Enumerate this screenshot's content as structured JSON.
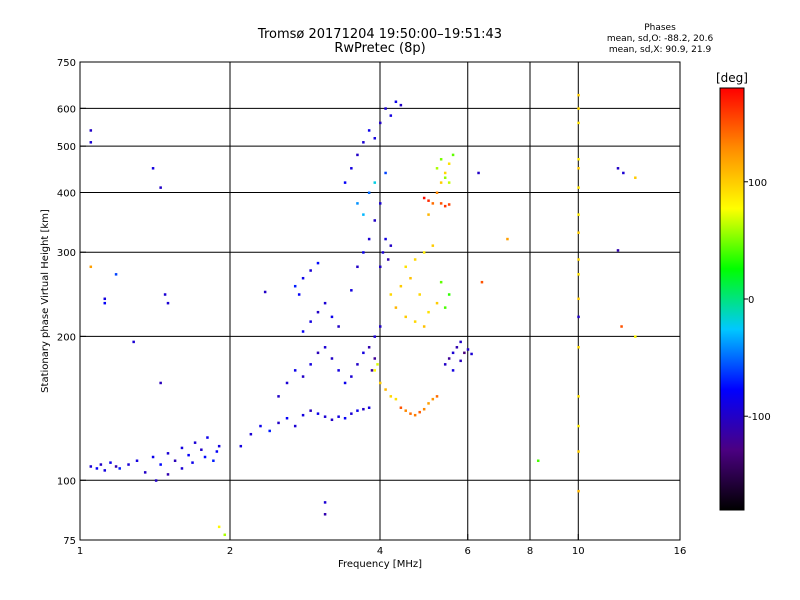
{
  "header": {
    "title": "Tromsø 20171204 19:50:00–19:51:43",
    "subtitle": "RwPretec (8p)"
  },
  "info_box": {
    "heading": "Phases",
    "line1": "mean, sd,O:  -88.2, 20.6",
    "line2": "mean, sd,X:   90.9, 21.9"
  },
  "chart_data": {
    "type": "scatter",
    "title": "Tromsø 20171204 19:50:00–19:51:43",
    "subtitle": "RwPretec (8p)",
    "xlabel": "Frequency [MHz]",
    "ylabel": "Stationary phase Virtual Height [km]",
    "x_scale": "log",
    "y_scale": "log",
    "xlim": [
      1,
      16
    ],
    "ylim": [
      75,
      750
    ],
    "x_ticks": [
      1,
      2,
      4,
      6,
      8,
      10,
      16
    ],
    "y_ticks": [
      75,
      100,
      200,
      300,
      400,
      500,
      600,
      750
    ],
    "x_gridlines": [
      2,
      4,
      6,
      8,
      10
    ],
    "y_gridlines": [
      100,
      200,
      300,
      400,
      500,
      600
    ],
    "colorbar": {
      "label": "[deg]",
      "range": [
        -180,
        180
      ],
      "ticks": [
        100,
        0,
        -100
      ],
      "colors": [
        "#000000",
        "#4b0082",
        "#0000ff",
        "#00c8ff",
        "#00ff00",
        "#ffff00",
        "#ff8c00",
        "#ff0000"
      ]
    },
    "series": [
      {
        "points": [
          [
            1.05,
            107,
            -95
          ],
          [
            1.08,
            106,
            -80
          ],
          [
            1.1,
            108,
            -100
          ],
          [
            1.12,
            105,
            -90
          ],
          [
            1.15,
            109,
            -85
          ],
          [
            1.18,
            107,
            -110
          ],
          [
            1.2,
            106,
            -70
          ],
          [
            1.25,
            108,
            -95
          ],
          [
            1.3,
            110,
            -90
          ],
          [
            1.35,
            104,
            -100
          ],
          [
            1.4,
            112,
            -85
          ],
          [
            1.45,
            108,
            -75
          ],
          [
            1.5,
            114,
            -95
          ],
          [
            1.55,
            110,
            -105
          ],
          [
            1.6,
            117,
            -90
          ],
          [
            1.65,
            113,
            -80
          ],
          [
            1.7,
            120,
            -95
          ],
          [
            1.75,
            116,
            -100
          ],
          [
            1.8,
            123,
            -85
          ],
          [
            1.85,
            110,
            -70
          ],
          [
            1.9,
            118,
            -90
          ],
          [
            1.42,
            100,
            -100
          ],
          [
            1.5,
            103,
            -110
          ],
          [
            1.6,
            106,
            -95
          ],
          [
            1.68,
            109,
            -85
          ],
          [
            1.78,
            112,
            -75
          ],
          [
            1.88,
            115,
            -80
          ],
          [
            2.1,
            118,
            -90
          ],
          [
            2.2,
            125,
            -95
          ],
          [
            2.3,
            130,
            -85
          ],
          [
            2.4,
            127,
            -70
          ],
          [
            2.5,
            132,
            -100
          ],
          [
            2.6,
            135,
            -80
          ],
          [
            2.7,
            130,
            -95
          ],
          [
            2.8,
            137,
            -90
          ],
          [
            2.9,
            140,
            -105
          ],
          [
            3.0,
            138,
            -85
          ],
          [
            3.1,
            136,
            -95
          ],
          [
            3.2,
            134,
            -100
          ],
          [
            3.3,
            136,
            -90
          ],
          [
            3.4,
            135,
            -80
          ],
          [
            3.5,
            138,
            -95
          ],
          [
            3.6,
            140,
            -85
          ],
          [
            3.7,
            141,
            -100
          ],
          [
            3.8,
            142,
            -90
          ],
          [
            2.5,
            150,
            -100
          ],
          [
            2.6,
            160,
            -95
          ],
          [
            2.7,
            170,
            -85
          ],
          [
            2.8,
            165,
            -100
          ],
          [
            2.9,
            175,
            -90
          ],
          [
            3.0,
            185,
            -105
          ],
          [
            3.1,
            190,
            -95
          ],
          [
            3.2,
            180,
            -100
          ],
          [
            3.3,
            170,
            -90
          ],
          [
            3.4,
            160,
            -85
          ],
          [
            3.5,
            165,
            -95
          ],
          [
            3.6,
            175,
            -100
          ],
          [
            3.7,
            185,
            -90
          ],
          [
            3.8,
            190,
            -110
          ],
          [
            3.9,
            200,
            -95
          ],
          [
            4.0,
            210,
            -100
          ],
          [
            3.9,
            180,
            -120
          ],
          [
            3.85,
            170,
            -115
          ],
          [
            2.8,
            205,
            -80
          ],
          [
            2.9,
            215,
            -90
          ],
          [
            3.0,
            225,
            -100
          ],
          [
            3.1,
            235,
            -95
          ],
          [
            3.2,
            220,
            -85
          ],
          [
            3.3,
            210,
            -100
          ],
          [
            2.7,
            255,
            -70
          ],
          [
            2.8,
            265,
            -85
          ],
          [
            2.9,
            275,
            -95
          ],
          [
            3.0,
            285,
            -75
          ],
          [
            2.75,
            245,
            -80
          ],
          [
            3.5,
            250,
            -90
          ],
          [
            3.6,
            280,
            -100
          ],
          [
            3.7,
            300,
            -85
          ],
          [
            3.8,
            320,
            -95
          ],
          [
            3.9,
            350,
            -100
          ],
          [
            4.0,
            380,
            -95
          ],
          [
            3.4,
            420,
            -80
          ],
          [
            3.5,
            450,
            -90
          ],
          [
            3.6,
            480,
            -100
          ],
          [
            3.7,
            510,
            -95
          ],
          [
            3.8,
            540,
            -85
          ],
          [
            3.9,
            520,
            -90
          ],
          [
            4.0,
            560,
            -100
          ],
          [
            4.1,
            600,
            -95
          ],
          [
            4.2,
            580,
            -90
          ],
          [
            4.3,
            620,
            -85
          ],
          [
            4.4,
            610,
            -100
          ],
          [
            3.6,
            380,
            -40
          ],
          [
            3.7,
            360,
            -30
          ],
          [
            3.8,
            400,
            -50
          ],
          [
            3.9,
            420,
            -20
          ],
          [
            4.1,
            440,
            -60
          ],
          [
            4.0,
            280,
            -100
          ],
          [
            4.05,
            300,
            -95
          ],
          [
            4.1,
            320,
            -90
          ],
          [
            4.15,
            290,
            -110
          ],
          [
            4.2,
            310,
            -100
          ],
          [
            3.9,
            170,
            80
          ],
          [
            4.0,
            160,
            100
          ],
          [
            4.1,
            155,
            110
          ],
          [
            4.2,
            150,
            95
          ],
          [
            4.3,
            148,
            90
          ],
          [
            3.95,
            175,
            70
          ],
          [
            4.5,
            140,
            130
          ],
          [
            4.6,
            138,
            140
          ],
          [
            4.7,
            137,
            135
          ],
          [
            4.8,
            139,
            145
          ],
          [
            4.9,
            141,
            130
          ],
          [
            5.0,
            145,
            120
          ],
          [
            5.1,
            148,
            125
          ],
          [
            5.2,
            150,
            140
          ],
          [
            4.4,
            142,
            150
          ],
          [
            4.2,
            245,
            95
          ],
          [
            4.4,
            255,
            100
          ],
          [
            4.6,
            265,
            105
          ],
          [
            4.8,
            245,
            95
          ],
          [
            5.0,
            225,
            90
          ],
          [
            5.2,
            235,
            100
          ],
          [
            4.3,
            230,
            110
          ],
          [
            4.5,
            220,
            100
          ],
          [
            4.7,
            215,
            95
          ],
          [
            4.9,
            210,
            105
          ],
          [
            4.5,
            280,
            90
          ],
          [
            4.7,
            290,
            95
          ],
          [
            4.9,
            300,
            85
          ],
          [
            5.1,
            310,
            100
          ],
          [
            5.0,
            360,
            110
          ],
          [
            5.1,
            380,
            140
          ],
          [
            5.2,
            400,
            130
          ],
          [
            5.3,
            420,
            100
          ],
          [
            5.4,
            440,
            95
          ],
          [
            5.5,
            460,
            90
          ],
          [
            5.2,
            450,
            60
          ],
          [
            5.3,
            470,
            50
          ],
          [
            5.4,
            430,
            55
          ],
          [
            5.6,
            480,
            45
          ],
          [
            5.5,
            420,
            65
          ],
          [
            5.3,
            380,
            150
          ],
          [
            5.4,
            375,
            160
          ],
          [
            5.5,
            378,
            155
          ],
          [
            4.9,
            390,
            175
          ],
          [
            5.0,
            385,
            165
          ],
          [
            5.4,
            175,
            -100
          ],
          [
            5.5,
            180,
            -120
          ],
          [
            5.6,
            185,
            -95
          ],
          [
            5.7,
            190,
            -110
          ],
          [
            5.8,
            195,
            -100
          ],
          [
            5.9,
            185,
            -130
          ],
          [
            5.6,
            170,
            -90
          ],
          [
            5.8,
            178,
            -105
          ],
          [
            6.0,
            188,
            -100
          ],
          [
            6.1,
            184,
            -95
          ],
          [
            5.4,
            230,
            40
          ],
          [
            5.5,
            245,
            35
          ],
          [
            5.3,
            260,
            45
          ],
          [
            1.05,
            540,
            -100
          ],
          [
            1.05,
            510,
            -95
          ],
          [
            1.05,
            280,
            120
          ],
          [
            1.12,
            240,
            -90
          ],
          [
            1.12,
            235,
            -80
          ],
          [
            1.18,
            270,
            -60
          ],
          [
            1.28,
            195,
            -95
          ],
          [
            1.4,
            450,
            -90
          ],
          [
            1.45,
            410,
            -100
          ],
          [
            1.48,
            245,
            -95
          ],
          [
            1.45,
            160,
            -105
          ],
          [
            1.5,
            235,
            -95
          ],
          [
            1.9,
            80,
            80
          ],
          [
            1.95,
            77,
            60
          ],
          [
            2.35,
            248,
            -100
          ],
          [
            3.1,
            85,
            -110
          ],
          [
            3.1,
            90,
            -95
          ],
          [
            10.0,
            640,
            100
          ],
          [
            10.0,
            600,
            95
          ],
          [
            10.0,
            560,
            90
          ],
          [
            10.0,
            470,
            85
          ],
          [
            10.0,
            450,
            100
          ],
          [
            10.0,
            410,
            90
          ],
          [
            10.0,
            360,
            85
          ],
          [
            10.0,
            330,
            100
          ],
          [
            10.0,
            290,
            95
          ],
          [
            10.0,
            270,
            90
          ],
          [
            10.0,
            240,
            100
          ],
          [
            10.0,
            220,
            -100
          ],
          [
            10.0,
            190,
            95
          ],
          [
            10.0,
            150,
            90
          ],
          [
            10.0,
            130,
            85
          ],
          [
            10.0,
            115,
            100
          ],
          [
            10.0,
            95,
            110
          ],
          [
            12.0,
            450,
            -100
          ],
          [
            12.0,
            303,
            -110
          ],
          [
            12.2,
            210,
            150
          ],
          [
            13.0,
            430,
            100
          ],
          [
            13.0,
            200,
            80
          ],
          [
            6.4,
            260,
            150
          ],
          [
            6.3,
            440,
            -100
          ],
          [
            7.2,
            320,
            120
          ],
          [
            8.3,
            110,
            40
          ],
          [
            12.3,
            440,
            -95
          ]
        ]
      }
    ]
  }
}
